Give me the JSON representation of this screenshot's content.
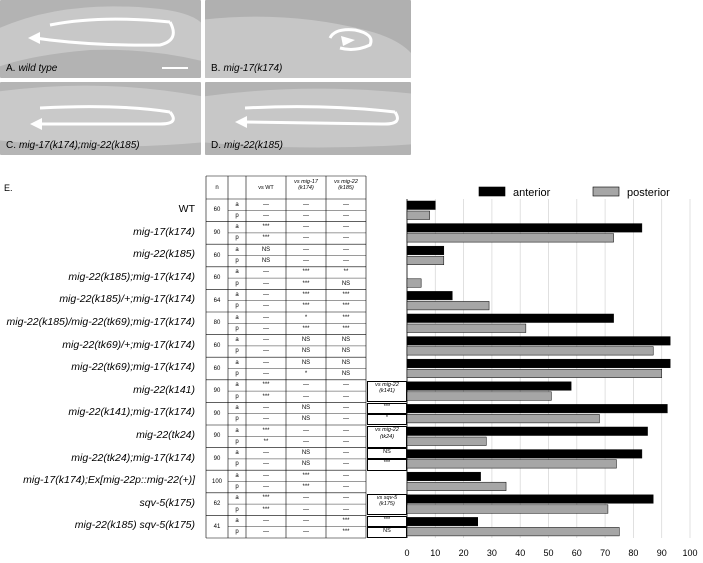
{
  "panels": [
    {
      "letter": "A.",
      "genotype": "wild type"
    },
    {
      "letter": "B.",
      "genotype": "mig-17(k174)"
    },
    {
      "letter": "C.",
      "genotype": "mig-17(k174);mig-22(k185)"
    },
    {
      "letter": "D.",
      "genotype": "mig-22(k185)"
    }
  ],
  "section_label": "E.",
  "table": {
    "headers": {
      "n": "n",
      "vs_wt": "vs WT",
      "vs_mig17": "vs mig-17",
      "vs_mig17_allele": "(k174)",
      "vs_mig22": "vs mig-22",
      "vs_mig22_allele": "(k185)"
    },
    "rows": [
      {
        "genotype": "WT",
        "n": "60",
        "a": [
          "—",
          "—",
          "—"
        ],
        "p": [
          "—",
          "—",
          "—"
        ]
      },
      {
        "genotype": "mig-17(k174)",
        "n": "90",
        "a": [
          "***",
          "—",
          "—"
        ],
        "p": [
          "***",
          "—",
          "—"
        ]
      },
      {
        "genotype": "mig-22(k185)",
        "n": "60",
        "a": [
          "NS",
          "—",
          "—"
        ],
        "p": [
          "NS",
          "—",
          "—"
        ]
      },
      {
        "genotype": "mig-22(k185);mig-17(k174)",
        "n": "60",
        "a": [
          "—",
          "***",
          "**"
        ],
        "p": [
          "—",
          "***",
          "NS"
        ]
      },
      {
        "genotype": "mig-22(k185)/+;mig-17(k174)",
        "n": "64",
        "a": [
          "—",
          "***",
          "***"
        ],
        "p": [
          "—",
          "***",
          "***"
        ]
      },
      {
        "genotype": "mig-22(k185)/mig-22(tk69);mig-17(k174)",
        "n": "80",
        "a": [
          "—",
          "*",
          "***"
        ],
        "p": [
          "—",
          "***",
          "***"
        ]
      },
      {
        "genotype": "mig-22(tk69)/+;mig-17(k174)",
        "n": "60",
        "a": [
          "—",
          "NS",
          "NS"
        ],
        "p": [
          "—",
          "NS",
          "NS"
        ]
      },
      {
        "genotype": "mig-22(tk69);mig-17(k174)",
        "n": "60",
        "a": [
          "—",
          "NS",
          "NS"
        ],
        "p": [
          "—",
          "*",
          "NS"
        ]
      },
      {
        "genotype": "mig-22(k141)",
        "n": "90",
        "a": [
          "***",
          "—",
          "—"
        ],
        "p": [
          "***",
          "—",
          "—"
        ]
      },
      {
        "genotype": "mig-22(k141);mig-17(k174)",
        "n": "90",
        "a": [
          "—",
          "NS",
          "—"
        ],
        "p": [
          "—",
          "NS",
          "—"
        ]
      },
      {
        "genotype": "mig-22(tk24)",
        "n": "90",
        "a": [
          "***",
          "—",
          "—"
        ],
        "p": [
          "**",
          "—",
          "—"
        ]
      },
      {
        "genotype": "mig-22(tk24);mig-17(k174)",
        "n": "90",
        "a": [
          "—",
          "NS",
          "—"
        ],
        "p": [
          "—",
          "NS",
          "—"
        ]
      },
      {
        "genotype": "mig-17(k174);Ex[mig-22p::mig-22(+)]",
        "n": "100",
        "a": [
          "—",
          "***",
          "—"
        ],
        "p": [
          "—",
          "***",
          "—"
        ]
      },
      {
        "genotype": "sqv-5(k175)",
        "n": "62",
        "a": [
          "***",
          "—",
          "—"
        ],
        "p": [
          "***",
          "—",
          "—"
        ]
      },
      {
        "genotype": "mig-22(k185) sqv-5(k175)",
        "n": "41",
        "a": [
          "—",
          "—",
          "***"
        ],
        "p": [
          "—",
          "—",
          "***"
        ]
      }
    ],
    "side_boxes": [
      {
        "head": "vs mig-22",
        "sub": "(k141)",
        "a": "***",
        "p": "*"
      },
      {
        "head": "vs mig-22",
        "sub": "(tk24)",
        "a": "NS",
        "p": "***"
      },
      {
        "head": "vs sqv-5",
        "sub": "(k175)",
        "a": "***",
        "p": "NS"
      }
    ]
  },
  "chart_data": {
    "type": "bar",
    "orientation": "horizontal",
    "xlabel": "Abnormal DTC migration (%)",
    "xlim": [
      0,
      100
    ],
    "xticks": [
      0,
      10,
      20,
      30,
      40,
      50,
      60,
      70,
      80,
      90,
      100
    ],
    "grid": true,
    "legend_position": "top",
    "categories": [
      "WT",
      "mig-17(k174)",
      "mig-22(k185)",
      "mig-22(k185);mig-17(k174)",
      "mig-22(k185)/+;mig-17(k174)",
      "mig-22(k185)/mig-22(tk69);mig-17(k174)",
      "mig-22(tk69)/+;mig-17(k174)",
      "mig-22(tk69);mig-17(k174)",
      "mig-22(k141)",
      "mig-22(k141);mig-17(k174)",
      "mig-22(tk24)",
      "mig-22(tk24);mig-17(k174)",
      "mig-17(k174);Ex[mig-22p::mig-22(+)]",
      "sqv-5(k175)",
      "mig-22(k185) sqv-5(k175)"
    ],
    "series": [
      {
        "name": "anterior",
        "color": "#000000",
        "values": [
          10,
          83,
          13,
          0,
          16,
          73,
          93,
          93,
          58,
          92,
          85,
          83,
          26,
          87,
          25
        ]
      },
      {
        "name": "posterior",
        "color": "#a6a6a6",
        "values": [
          8,
          73,
          13,
          5,
          29,
          42,
          87,
          90,
          51,
          68,
          28,
          74,
          35,
          71,
          75
        ]
      }
    ]
  }
}
